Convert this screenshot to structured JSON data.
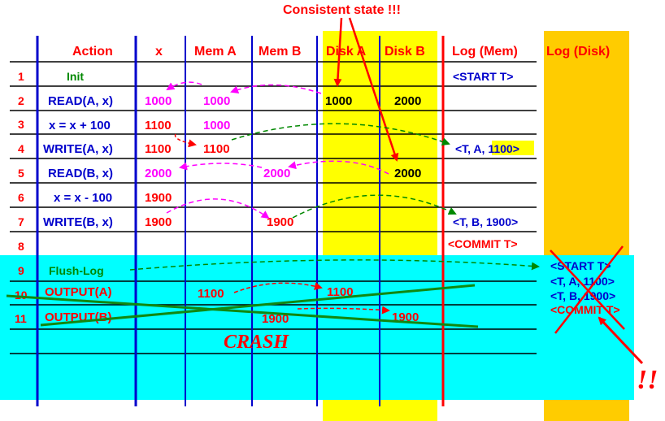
{
  "title": "Consistent state !!!",
  "headers": {
    "action": "Action",
    "x": "x",
    "mem_a": "Mem A",
    "mem_b": "Mem B",
    "disk_a": "Disk A",
    "disk_b": "Disk B",
    "log_mem": "Log (Mem)",
    "log_disk": "Log (Disk)"
  },
  "rows": [
    {
      "num": "1",
      "action": "Init",
      "x": "",
      "mem_a": "",
      "mem_b": "",
      "disk_a": "",
      "disk_b": "",
      "log_mem": "<START T>"
    },
    {
      "num": "2",
      "action": "READ(A, x)",
      "x": "1000",
      "mem_a": "1000",
      "mem_b": "",
      "disk_a": "1000",
      "disk_b": "2000",
      "log_mem": ""
    },
    {
      "num": "3",
      "action": "x = x + 100",
      "x": "1100",
      "mem_a": "1000",
      "mem_b": "",
      "disk_a": "",
      "disk_b": "",
      "log_mem": ""
    },
    {
      "num": "4",
      "action": "WRITE(A, x)",
      "x": "1100",
      "mem_a": "1100",
      "mem_b": "",
      "disk_a": "",
      "disk_b": "",
      "log_mem": "<T, A, 1100>"
    },
    {
      "num": "5",
      "action": "READ(B, x)",
      "x": "2000",
      "mem_a": "",
      "mem_b": "2000",
      "disk_a": "",
      "disk_b": "2000",
      "log_mem": ""
    },
    {
      "num": "6",
      "action": "x = x - 100",
      "x": "1900",
      "mem_a": "",
      "mem_b": "",
      "disk_a": "",
      "disk_b": "",
      "log_mem": ""
    },
    {
      "num": "7",
      "action": "WRITE(B, x)",
      "x": "1900",
      "mem_a": "",
      "mem_b": "1900",
      "disk_a": "",
      "disk_b": "",
      "log_mem": "<T, B, 1900>"
    },
    {
      "num": "8",
      "action": "",
      "x": "",
      "mem_a": "",
      "mem_b": "",
      "disk_a": "",
      "disk_b": "",
      "log_mem": "<COMMIT T>"
    },
    {
      "num": "9",
      "action": "Flush-Log",
      "x": "",
      "mem_a": "",
      "mem_b": "",
      "disk_a": "",
      "disk_b": "",
      "log_mem": ""
    },
    {
      "num": "10",
      "action": "OUTPUT(A)",
      "x": "",
      "mem_a": "1100",
      "mem_b": "",
      "disk_a": "1100",
      "disk_b": "",
      "log_mem": ""
    },
    {
      "num": "11",
      "action": "OUTPUT(B)",
      "x": "",
      "mem_a": "",
      "mem_b": "1900",
      "disk_a": "",
      "disk_b": "1900",
      "log_mem": ""
    }
  ],
  "log_disk_entries": [
    "<START T>",
    "<T, A, 1100>",
    "<T, B, 1900>",
    "<COMMIT T>"
  ],
  "crash_label": "CRASH",
  "exclaim": "!!",
  "colors": {
    "crash_region": "#00ffff",
    "disk_band": "#ffff00",
    "log_disk_band": "#ffcc00",
    "header_text": "#ff0000",
    "action_blue": "#0000cc",
    "action_green": "#008800",
    "magenta": "#ff00ff",
    "red": "#ff0000",
    "green_line": "#118811"
  }
}
